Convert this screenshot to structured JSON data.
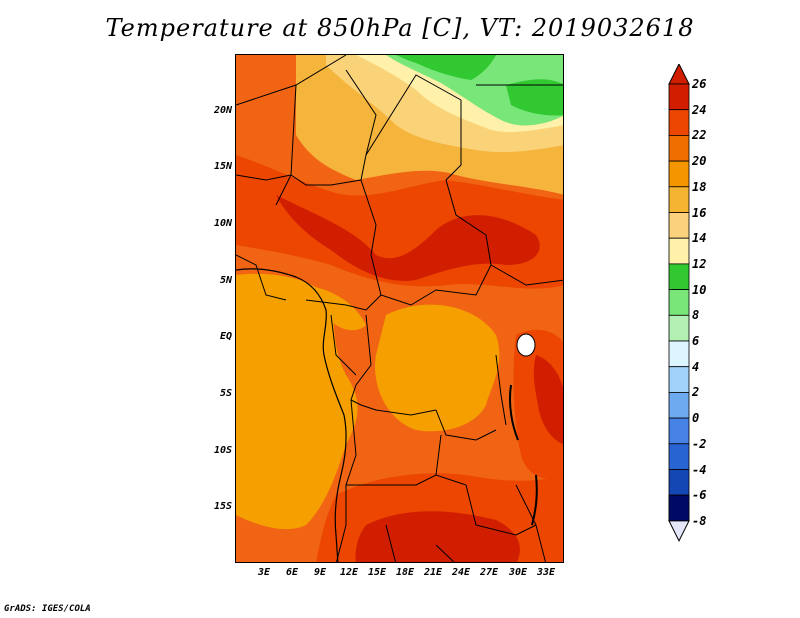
{
  "title": "Temperature at 850hPa [C], VT: 2019032618",
  "credit": "GrADS: IGES/COLA",
  "map": {
    "lat_labels": [
      "20N",
      "15N",
      "10N",
      "5N",
      "EQ",
      "5S",
      "10S",
      "15S"
    ],
    "lon_labels": [
      "3E",
      "6E",
      "9E",
      "12E",
      "15E",
      "18E",
      "21E",
      "24E",
      "27E",
      "30E",
      "33E"
    ],
    "colors": {
      "c26": "#e60000",
      "c24": "#f03c0a",
      "c22": "#f06414",
      "c20": "#f5a000",
      "c18": "#f5b43c",
      "c16": "#fad278",
      "c14": "#fff0aa",
      "c12": "#32c832",
      "c10": "#78e678",
      "c8": "#b4f0b4"
    }
  },
  "colorbar": {
    "levels": [
      "26",
      "24",
      "22",
      "20",
      "18",
      "16",
      "14",
      "12",
      "10",
      "8",
      "6",
      "4",
      "2",
      "0",
      "-2",
      "-4",
      "-6",
      "-8"
    ],
    "colors": [
      "#d21e00",
      "#ec4600",
      "#f06e00",
      "#f59600",
      "#f5b432",
      "#fad27d",
      "#fff0aa",
      "#32c832",
      "#78e678",
      "#b4f0b4",
      "#ddf5ff",
      "#a0d2fa",
      "#6eaaf0",
      "#4682e6",
      "#2864d2",
      "#1446b4",
      "#0a2896",
      "#000a64"
    ],
    "under_color": "#e6e6fa"
  }
}
